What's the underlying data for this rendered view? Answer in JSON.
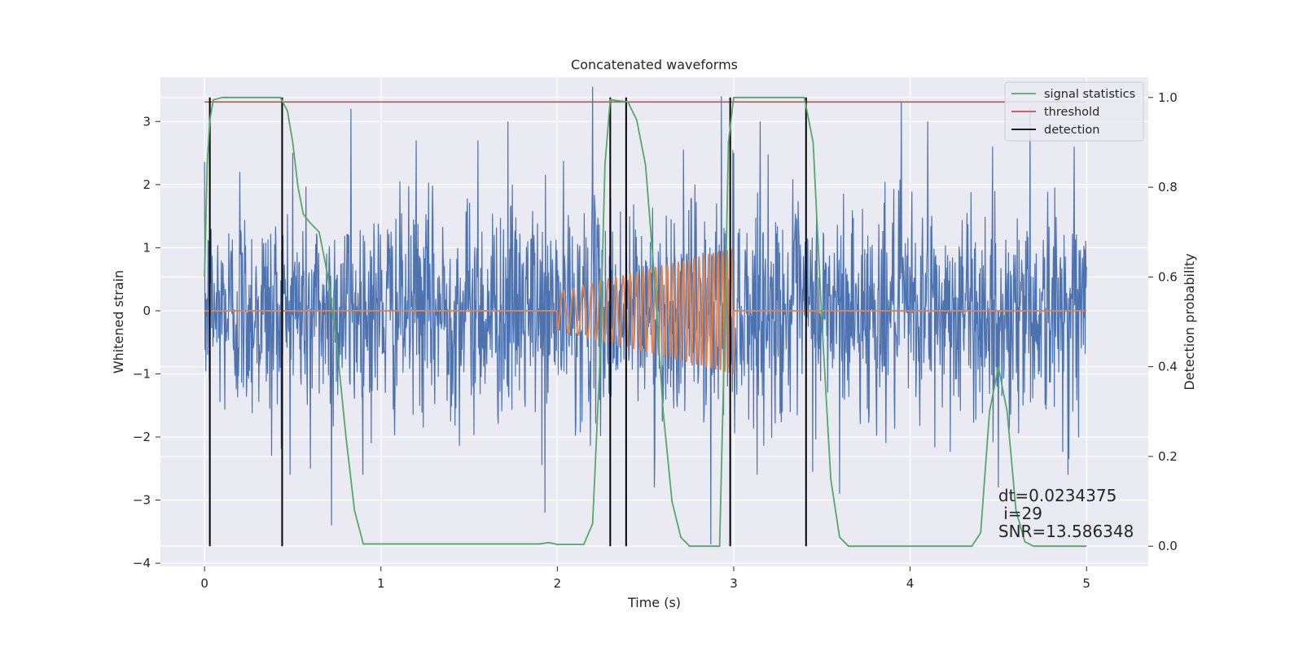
{
  "chart_data": {
    "type": "line",
    "title": "Concatenated waveforms",
    "xlabel": "Time (s)",
    "ylabel_left": "Whitened strain",
    "ylabel_right": "Detection probability",
    "xlim": [
      -0.25,
      5.35
    ],
    "ylim_left": [
      -4.05,
      3.7
    ],
    "ylim_right": [
      -0.045,
      1.045
    ],
    "x_ticks": [
      0,
      1,
      2,
      3,
      4,
      5
    ],
    "y_ticks_left": [
      -4,
      -3,
      -2,
      -1,
      0,
      1,
      2,
      3
    ],
    "y_ticks_right": [
      0.0,
      0.2,
      0.4,
      0.6,
      0.8,
      1.0
    ],
    "grid": true,
    "legend_position": "upper-right",
    "legend": [
      {
        "label": "signal statistics",
        "color": "#55a868"
      },
      {
        "label": "threshold",
        "color": "#c44e52"
      },
      {
        "label": "detection",
        "color": "#000000"
      }
    ],
    "noise": {
      "axis": "left",
      "color": "#4c72b0",
      "x_range": [
        0,
        5
      ],
      "typical_amplitude": 1.0,
      "peaks": [
        [
          0.03,
          1.7
        ],
        [
          0.2,
          2.2
        ],
        [
          0.38,
          -2.3
        ],
        [
          0.5,
          2.5
        ],
        [
          0.6,
          -2.5
        ],
        [
          0.72,
          -3.4
        ],
        [
          0.83,
          3.2
        ],
        [
          1.2,
          2.7
        ],
        [
          1.55,
          2.7
        ],
        [
          1.72,
          3.0
        ],
        [
          1.93,
          -3.2
        ],
        [
          2.2,
          3.55
        ],
        [
          2.55,
          -2.8
        ],
        [
          2.78,
          2.0
        ],
        [
          2.87,
          -3.7
        ],
        [
          2.93,
          3.4
        ],
        [
          3.0,
          2.5
        ],
        [
          3.15,
          3.0
        ],
        [
          3.6,
          -2.9
        ],
        [
          3.95,
          3.3
        ],
        [
          4.1,
          3.0
        ],
        [
          4.5,
          -2.8
        ],
        [
          4.68,
          3.2
        ],
        [
          4.93,
          2.6
        ]
      ]
    },
    "injected_signal": {
      "axis": "left",
      "color": "#dd8452",
      "x_range": [
        0,
        5
      ],
      "chirp_start": 2.0,
      "chirp_end": 3.0,
      "amplitude_start": 0.3,
      "amplitude_end": 1.0,
      "cycles": 28
    },
    "signal_statistics": {
      "axis": "right",
      "color": "#55a868",
      "points": [
        [
          0.0,
          0.6
        ],
        [
          0.015,
          0.85
        ],
        [
          0.03,
          0.95
        ],
        [
          0.05,
          0.995
        ],
        [
          0.1,
          1.0
        ],
        [
          0.43,
          1.0
        ],
        [
          0.47,
          0.97
        ],
        [
          0.5,
          0.9
        ],
        [
          0.53,
          0.8
        ],
        [
          0.56,
          0.74
        ],
        [
          0.6,
          0.72
        ],
        [
          0.65,
          0.7
        ],
        [
          0.7,
          0.6
        ],
        [
          0.75,
          0.45
        ],
        [
          0.8,
          0.25
        ],
        [
          0.85,
          0.08
        ],
        [
          0.9,
          0.005
        ],
        [
          1.9,
          0.005
        ],
        [
          1.95,
          0.008
        ],
        [
          2.0,
          0.004
        ],
        [
          2.15,
          0.004
        ],
        [
          2.2,
          0.05
        ],
        [
          2.24,
          0.4
        ],
        [
          2.27,
          0.85
        ],
        [
          2.3,
          0.995
        ],
        [
          2.4,
          0.99
        ],
        [
          2.45,
          0.95
        ],
        [
          2.5,
          0.85
        ],
        [
          2.55,
          0.6
        ],
        [
          2.6,
          0.3
        ],
        [
          2.65,
          0.1
        ],
        [
          2.7,
          0.02
        ],
        [
          2.75,
          0.0
        ],
        [
          2.92,
          0.0
        ],
        [
          2.95,
          0.5
        ],
        [
          2.97,
          0.9
        ],
        [
          3.0,
          1.0
        ],
        [
          3.4,
          1.0
        ],
        [
          3.45,
          0.9
        ],
        [
          3.5,
          0.5
        ],
        [
          3.55,
          0.15
        ],
        [
          3.6,
          0.02
        ],
        [
          3.65,
          0.0
        ],
        [
          4.35,
          0.0
        ],
        [
          4.4,
          0.03
        ],
        [
          4.45,
          0.3
        ],
        [
          4.5,
          0.4
        ],
        [
          4.55,
          0.3
        ],
        [
          4.6,
          0.08
        ],
        [
          4.65,
          0.01
        ],
        [
          4.7,
          0.0
        ],
        [
          5.0,
          0.0
        ]
      ]
    },
    "threshold": {
      "axis": "right",
      "color": "#c44e52",
      "value": 0.99,
      "x_range": [
        0,
        5
      ]
    },
    "detections": {
      "color": "#000000",
      "x": [
        0.03,
        0.44,
        2.3,
        2.39,
        2.98,
        3.41
      ]
    },
    "annotation": {
      "lines": [
        "dt=0.0234375",
        " i=29",
        "SNR=13.586348"
      ],
      "x": 4.5,
      "y_right": 0.1
    }
  }
}
